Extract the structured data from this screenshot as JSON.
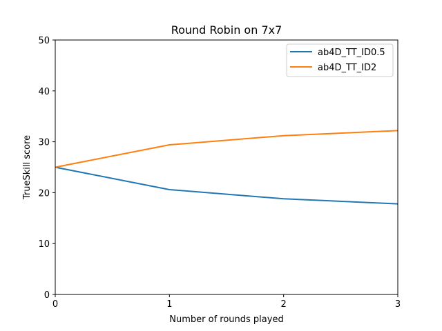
{
  "chart_data": {
    "type": "line",
    "title": "Round Robin on 7x7",
    "xlabel": "Number of rounds played",
    "ylabel": "TrueSkill score",
    "x": [
      0,
      1,
      2,
      3
    ],
    "xlim": [
      0,
      3
    ],
    "ylim": [
      0,
      50
    ],
    "xticks": [
      "0",
      "1",
      "2",
      "3"
    ],
    "yticks": [
      "0",
      "10",
      "20",
      "30",
      "40",
      "50"
    ],
    "grid": false,
    "legend_position": "top-right",
    "series": [
      {
        "name": "ab4D_TT_ID0.5",
        "color": "#1f77b4",
        "values": [
          25.0,
          20.6,
          18.8,
          17.8
        ]
      },
      {
        "name": "ab4D_TT_ID2",
        "color": "#ff7f0e",
        "values": [
          25.0,
          29.4,
          31.2,
          32.2
        ]
      }
    ]
  }
}
